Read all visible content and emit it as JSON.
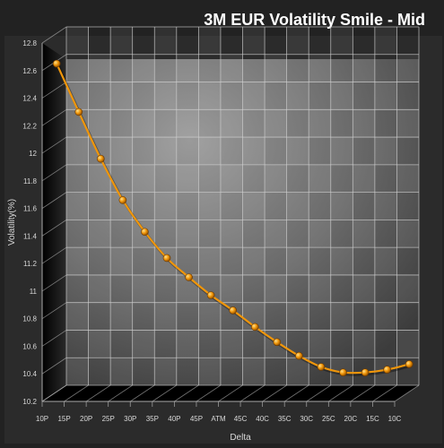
{
  "chart_data": {
    "type": "line",
    "title": "3M EUR Volatility Smile - Mid",
    "xlabel": "Delta",
    "ylabel": "Volatility(%)",
    "categories": [
      "10P",
      "15P",
      "20P",
      "25P",
      "30P",
      "35P",
      "40P",
      "45P",
      "ATM",
      "45C",
      "40C",
      "35C",
      "30C",
      "25C",
      "20C",
      "15C",
      "10C"
    ],
    "yticks": [
      "10.2",
      "10.4",
      "10.6",
      "10.8",
      "11",
      "11.2",
      "11.4",
      "11.6",
      "11.8",
      "12",
      "12.2",
      "12.4",
      "12.6",
      "12.8"
    ],
    "ylim": [
      10.2,
      12.8
    ],
    "grid": true,
    "series": [
      {
        "values": [
          12.58,
          12.23,
          11.89,
          11.59,
          11.36,
          11.17,
          11.03,
          10.9,
          10.79,
          10.67,
          10.56,
          10.46,
          10.38,
          10.34,
          10.34,
          10.36,
          10.4
        ],
        "color": "#f0960a"
      }
    ],
    "colors": {
      "background": "#222222",
      "wall": "#3a3a3a",
      "side_wall": "#111111",
      "grid": "#cfcfcf",
      "text": "#d8d8d8",
      "title": "#ffffff"
    }
  }
}
